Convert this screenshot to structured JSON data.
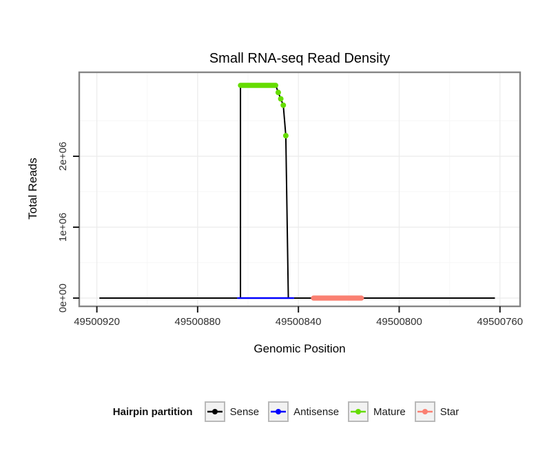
{
  "chart_data": {
    "type": "line",
    "title": "Small RNA-seq Read Density",
    "xlabel": "Genomic Position",
    "ylabel": "Total Reads",
    "x_axis": {
      "reversed": true,
      "range": [
        49500927,
        49500752
      ],
      "ticks": [
        49500920,
        49500880,
        49500840,
        49500800,
        49500760
      ],
      "tick_labels": [
        "49500920",
        "49500880",
        "49500840",
        "49500800",
        "49500760"
      ],
      "minor_ticks": [
        49500900,
        49500860,
        49500820,
        49500780
      ]
    },
    "y_axis": {
      "range": [
        0,
        3300000
      ],
      "ticks": [
        0,
        1000000,
        2000000
      ],
      "tick_labels": [
        "0e+00",
        "1e+06",
        "2e+06"
      ],
      "minor_ticks": [
        500000,
        1500000,
        2500000
      ]
    },
    "grid": true,
    "series": [
      {
        "name": "Sense",
        "color": "#000000",
        "geom": "line",
        "linewidth": 2,
        "points": [
          [
            49500919,
            0
          ],
          [
            49500863,
            0
          ],
          [
            49500863,
            3000000
          ],
          [
            49500849,
            3000000
          ],
          [
            49500848,
            2900000
          ],
          [
            49500847,
            2810000
          ],
          [
            49500846,
            2720000
          ],
          [
            49500845,
            2290000
          ],
          [
            49500844,
            0
          ],
          [
            49500762,
            0
          ]
        ]
      },
      {
        "name": "Antisense",
        "color": "#0000FF",
        "geom": "segment",
        "linewidth": 2.5,
        "points": [
          [
            49500864,
            0
          ],
          [
            49500842,
            0
          ]
        ]
      },
      {
        "name": "Star",
        "color": "#FA8072",
        "geom": "segment",
        "linewidth": 7.5,
        "points": [
          [
            49500834,
            0
          ],
          [
            49500815,
            0
          ]
        ]
      },
      {
        "name": "Mature",
        "color": "#65DC00",
        "geom": "segment",
        "linewidth": 7.5,
        "points": [
          [
            49500863,
            3000000
          ],
          [
            49500849,
            3000000
          ]
        ],
        "dots": [
          [
            49500848,
            2900000
          ],
          [
            49500847,
            2810000
          ],
          [
            49500846,
            2720000
          ],
          [
            49500845,
            2290000
          ]
        ]
      }
    ],
    "legend": {
      "title": "Hairpin partition",
      "position": "bottom",
      "items": [
        {
          "label": "Sense",
          "color": "#000000"
        },
        {
          "label": "Antisense",
          "color": "#0000FF"
        },
        {
          "label": "Mature",
          "color": "#65DC00"
        },
        {
          "label": "Star",
          "color": "#FA8072"
        }
      ]
    }
  }
}
